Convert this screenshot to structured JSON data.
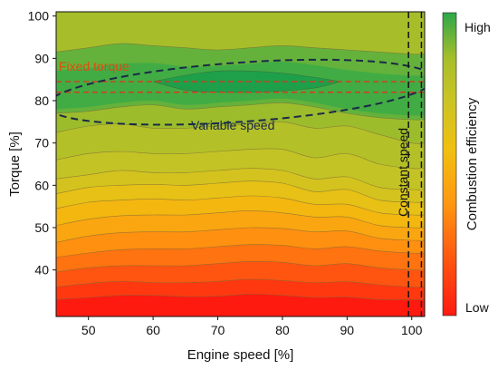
{
  "chart_data": {
    "type": "contour",
    "title": "",
    "xlabel": "Engine speed [%]",
    "ylabel": "Torque [%]",
    "xlim": [
      45,
      102
    ],
    "ylim": [
      29,
      101
    ],
    "x_ticks": [
      50,
      60,
      70,
      80,
      90,
      100
    ],
    "y_ticks": [
      40,
      50,
      60,
      70,
      80,
      90,
      100
    ],
    "grid": false,
    "colorbar": {
      "label": "Combustion efficiency",
      "high_label": "High",
      "low_label": "Low",
      "colors": [
        "#ff1a10",
        "#ff5a10",
        "#ff9a10",
        "#f0c010",
        "#c8c424",
        "#a6be2a",
        "#2ca84a"
      ]
    },
    "contour_x": [
      45,
      50,
      55,
      60,
      65,
      70,
      75,
      80,
      85,
      90,
      95,
      100,
      102
    ],
    "bands": [
      {
        "level": 1,
        "y": [
          33.0,
          33.5,
          34.0,
          34.0,
          33.7,
          33.8,
          34.3,
          34.0,
          33.5,
          33.6,
          33.0,
          33.0,
          33.0
        ]
      },
      {
        "level": 2,
        "y": [
          36.0,
          36.8,
          37.3,
          37.0,
          37.0,
          37.3,
          37.8,
          37.5,
          37.0,
          37.2,
          36.5,
          36.0,
          36.0
        ]
      },
      {
        "level": 3,
        "y": [
          39.5,
          40.5,
          41.0,
          41.0,
          41.0,
          41.5,
          42.0,
          41.8,
          41.0,
          41.5,
          40.5,
          40.0,
          40.0
        ]
      },
      {
        "level": 4,
        "y": [
          43.0,
          44.0,
          44.8,
          45.0,
          45.0,
          45.5,
          46.0,
          45.8,
          45.0,
          45.5,
          44.5,
          44.0,
          44.0
        ]
      },
      {
        "level": 5,
        "y": [
          46.5,
          48.0,
          48.8,
          49.0,
          49.0,
          49.5,
          50.0,
          49.8,
          49.0,
          49.2,
          47.5,
          47.0,
          47.0
        ]
      },
      {
        "level": 6,
        "y": [
          50.5,
          52.0,
          52.8,
          53.0,
          53.0,
          53.5,
          54.0,
          53.5,
          52.5,
          52.5,
          50.5,
          50.0,
          50.0
        ]
      },
      {
        "level": 7,
        "y": [
          54.5,
          56.0,
          56.5,
          56.8,
          56.5,
          57.0,
          57.5,
          57.0,
          55.5,
          55.5,
          53.5,
          53.0,
          53.0
        ]
      },
      {
        "level": 8,
        "y": [
          58.0,
          59.5,
          60.0,
          60.2,
          60.0,
          60.5,
          61.0,
          60.5,
          58.5,
          59.0,
          56.5,
          56.0,
          56.0
        ]
      },
      {
        "level": 9,
        "y": [
          61.5,
          62.5,
          63.5,
          63.0,
          63.0,
          63.5,
          64.0,
          63.5,
          61.5,
          62.0,
          59.5,
          59.0,
          59.0
        ]
      },
      {
        "level": 10,
        "y": [
          66.0,
          67.5,
          68.0,
          67.5,
          67.5,
          68.0,
          68.5,
          68.5,
          66.5,
          67.5,
          65.0,
          64.0,
          64.0
        ]
      },
      {
        "level": 11,
        "y": [
          72.5,
          74.0,
          74.5,
          73.5,
          73.5,
          74.0,
          74.5,
          75.0,
          73.5,
          74.0,
          72.0,
          70.0,
          70.0
        ]
      },
      {
        "level": 12,
        "y": [
          77.0,
          77.5,
          78.5,
          79.0,
          78.0,
          78.5,
          79.0,
          79.5,
          78.5,
          77.0,
          76.0,
          75.5,
          75.5
        ]
      }
    ],
    "top_band": {
      "y": [
        91.5,
        92.5,
        93.5,
        93.0,
        92.5,
        92.0,
        92.5,
        93.0,
        92.5,
        92.0,
        91.5,
        91.0,
        91.0
      ]
    },
    "green_core_upper": {
      "x": [
        60,
        65,
        70,
        75,
        80,
        85,
        89
      ],
      "y": [
        84.5,
        86.0,
        87.0,
        87.0,
        86.5,
        85.5,
        84.5
      ]
    },
    "green_core_lower": {
      "x": [
        60,
        65,
        70,
        75,
        80,
        85,
        89
      ],
      "y": [
        84.5,
        82.5,
        82.0,
        82.0,
        82.3,
        83.0,
        84.5
      ]
    },
    "annotations": {
      "fixed_torque": {
        "label": "Fixed torque",
        "torque_range": [
          82,
          84.5
        ]
      },
      "variable_speed": {
        "label": "Variable speed",
        "ellipse_center": [
          73.5,
          82.0
        ],
        "ellipse_radii": [
          30,
          7
        ],
        "ellipse_rotation_deg": 4
      },
      "constant_speed": {
        "label": "Constant speed",
        "speed_range": [
          99.5,
          101.5
        ]
      }
    }
  }
}
